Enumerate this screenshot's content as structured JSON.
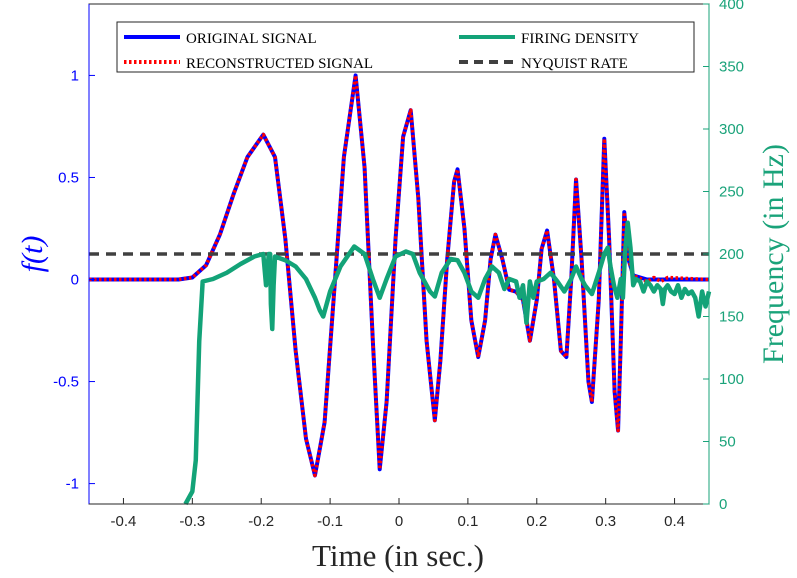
{
  "chart_data": {
    "type": "line",
    "title": "",
    "xlabel": "Time (in sec.)",
    "ylabel_left": "f(t)",
    "ylabel_right": "Frequency (in Hz)",
    "xlim": [
      -0.45,
      0.45
    ],
    "ylim_left": [
      -1.1,
      1.35
    ],
    "ylim_right": [
      0,
      400
    ],
    "xticks": [
      -0.4,
      -0.3,
      -0.2,
      -0.1,
      0,
      0.1,
      0.2,
      0.3,
      0.4
    ],
    "xtick_labels": [
      "-0.4",
      "-0.3",
      "-0.2",
      "-0.1",
      "0",
      "0.1",
      "0.2",
      "0.3",
      "0.4"
    ],
    "yticks_left": [
      -1,
      -0.5,
      0,
      0.5,
      1
    ],
    "ytick_labels_left": [
      "-1",
      "-0.5",
      "0",
      "0.5",
      "1"
    ],
    "yticks_right": [
      0,
      50,
      100,
      150,
      200,
      250,
      300,
      350,
      400
    ],
    "ytick_labels_right": [
      "0",
      "50",
      "100",
      "150",
      "200",
      "250",
      "300",
      "350",
      "400"
    ],
    "grid": false,
    "legend_placement": "top",
    "colors": {
      "left_axis": "#0000ff",
      "right_axis": "#1aa37a",
      "original": "#0000ff",
      "reconstructed": "#ff0000",
      "firing": "#13a378",
      "nyquist": "#404040"
    },
    "series": [
      {
        "name": "ORIGINAL SIGNAL",
        "axis": "left",
        "style": "solid",
        "points": [
          [
            -0.45,
            0
          ],
          [
            -0.32,
            0
          ],
          [
            -0.3,
            0.01
          ],
          [
            -0.28,
            0.07
          ],
          [
            -0.26,
            0.22
          ],
          [
            -0.24,
            0.42
          ],
          [
            -0.22,
            0.6
          ],
          [
            -0.197,
            0.71
          ],
          [
            -0.18,
            0.6
          ],
          [
            -0.165,
            0.2
          ],
          [
            -0.15,
            -0.35
          ],
          [
            -0.135,
            -0.78
          ],
          [
            -0.122,
            -0.96
          ],
          [
            -0.108,
            -0.7
          ],
          [
            -0.095,
            -0.1
          ],
          [
            -0.08,
            0.6
          ],
          [
            -0.063,
            1.0
          ],
          [
            -0.05,
            0.55
          ],
          [
            -0.038,
            -0.3
          ],
          [
            -0.028,
            -0.93
          ],
          [
            -0.018,
            -0.6
          ],
          [
            -0.005,
            0.2
          ],
          [
            0.006,
            0.7
          ],
          [
            0.017,
            0.83
          ],
          [
            0.028,
            0.4
          ],
          [
            0.04,
            -0.3
          ],
          [
            0.052,
            -0.69
          ],
          [
            0.06,
            -0.4
          ],
          [
            0.07,
            0.1
          ],
          [
            0.08,
            0.48
          ],
          [
            0.085,
            0.54
          ],
          [
            0.095,
            0.25
          ],
          [
            0.105,
            -0.2
          ],
          [
            0.115,
            -0.38
          ],
          [
            0.125,
            -0.2
          ],
          [
            0.133,
            0.1
          ],
          [
            0.14,
            0.22
          ],
          [
            0.15,
            0.1
          ],
          [
            0.16,
            -0.05
          ],
          [
            0.17,
            -0.06
          ],
          [
            0.18,
            -0.1
          ],
          [
            0.19,
            -0.3
          ],
          [
            0.2,
            -0.1
          ],
          [
            0.207,
            0.15
          ],
          [
            0.215,
            0.24
          ],
          [
            0.225,
            0.0
          ],
          [
            0.235,
            -0.35
          ],
          [
            0.243,
            -0.38
          ],
          [
            0.25,
            0.0
          ],
          [
            0.257,
            0.49
          ],
          [
            0.265,
            0.1
          ],
          [
            0.275,
            -0.5
          ],
          [
            0.28,
            -0.6
          ],
          [
            0.29,
            -0.1
          ],
          [
            0.298,
            0.69
          ],
          [
            0.305,
            0.2
          ],
          [
            0.313,
            -0.55
          ],
          [
            0.318,
            -0.74
          ],
          [
            0.322,
            -0.3
          ],
          [
            0.327,
            0.33
          ],
          [
            0.333,
            0.1
          ],
          [
            0.34,
            0.02
          ],
          [
            0.36,
            0.0
          ],
          [
            0.45,
            0.0
          ]
        ]
      },
      {
        "name": "RECONSTRUCTED SIGNAL",
        "axis": "left",
        "style": "dotted",
        "points": [
          [
            -0.45,
            0
          ],
          [
            -0.32,
            0
          ],
          [
            -0.3,
            0.01
          ],
          [
            -0.28,
            0.07
          ],
          [
            -0.26,
            0.22
          ],
          [
            -0.24,
            0.42
          ],
          [
            -0.22,
            0.6
          ],
          [
            -0.197,
            0.71
          ],
          [
            -0.18,
            0.6
          ],
          [
            -0.165,
            0.2
          ],
          [
            -0.15,
            -0.35
          ],
          [
            -0.135,
            -0.78
          ],
          [
            -0.122,
            -0.96
          ],
          [
            -0.108,
            -0.7
          ],
          [
            -0.095,
            -0.1
          ],
          [
            -0.08,
            0.6
          ],
          [
            -0.063,
            1.0
          ],
          [
            -0.05,
            0.55
          ],
          [
            -0.038,
            -0.3
          ],
          [
            -0.028,
            -0.93
          ],
          [
            -0.018,
            -0.6
          ],
          [
            -0.005,
            0.2
          ],
          [
            0.006,
            0.7
          ],
          [
            0.017,
            0.83
          ],
          [
            0.028,
            0.4
          ],
          [
            0.04,
            -0.3
          ],
          [
            0.052,
            -0.69
          ],
          [
            0.06,
            -0.4
          ],
          [
            0.07,
            0.1
          ],
          [
            0.08,
            0.48
          ],
          [
            0.085,
            0.54
          ],
          [
            0.095,
            0.25
          ],
          [
            0.105,
            -0.2
          ],
          [
            0.115,
            -0.38
          ],
          [
            0.125,
            -0.2
          ],
          [
            0.133,
            0.1
          ],
          [
            0.14,
            0.22
          ],
          [
            0.15,
            0.1
          ],
          [
            0.16,
            -0.05
          ],
          [
            0.17,
            -0.06
          ],
          [
            0.18,
            -0.1
          ],
          [
            0.19,
            -0.3
          ],
          [
            0.2,
            -0.1
          ],
          [
            0.207,
            0.15
          ],
          [
            0.215,
            0.24
          ],
          [
            0.225,
            0.0
          ],
          [
            0.235,
            -0.35
          ],
          [
            0.243,
            -0.38
          ],
          [
            0.25,
            0.0
          ],
          [
            0.257,
            0.49
          ],
          [
            0.265,
            0.1
          ],
          [
            0.275,
            -0.5
          ],
          [
            0.28,
            -0.6
          ],
          [
            0.29,
            -0.1
          ],
          [
            0.298,
            0.69
          ],
          [
            0.305,
            0.2
          ],
          [
            0.313,
            -0.55
          ],
          [
            0.318,
            -0.74
          ],
          [
            0.322,
            -0.3
          ],
          [
            0.327,
            0.33
          ],
          [
            0.333,
            0.1
          ],
          [
            0.34,
            0.02
          ],
          [
            0.36,
            -0.01
          ],
          [
            0.37,
            0.01
          ],
          [
            0.38,
            -0.01
          ],
          [
            0.39,
            0.01
          ],
          [
            0.45,
            0.0
          ]
        ]
      },
      {
        "name": "FIRING DENSITY",
        "axis": "right",
        "style": "solid",
        "points": [
          [
            -0.31,
            0
          ],
          [
            -0.3,
            10
          ],
          [
            -0.295,
            35
          ],
          [
            -0.29,
            130
          ],
          [
            -0.285,
            178
          ],
          [
            -0.27,
            180
          ],
          [
            -0.25,
            185
          ],
          [
            -0.23,
            192
          ],
          [
            -0.21,
            198
          ],
          [
            -0.197,
            200
          ],
          [
            -0.193,
            175
          ],
          [
            -0.189,
            200
          ],
          [
            -0.187,
            200
          ],
          [
            -0.186,
            160
          ],
          [
            -0.184,
            140
          ],
          [
            -0.182,
            175
          ],
          [
            -0.18,
            198
          ],
          [
            -0.165,
            195
          ],
          [
            -0.15,
            190
          ],
          [
            -0.135,
            180
          ],
          [
            -0.122,
            165
          ],
          [
            -0.115,
            155
          ],
          [
            -0.11,
            150
          ],
          [
            -0.1,
            170
          ],
          [
            -0.085,
            190
          ],
          [
            -0.065,
            206
          ],
          [
            -0.05,
            200
          ],
          [
            -0.038,
            180
          ],
          [
            -0.028,
            165
          ],
          [
            -0.018,
            180
          ],
          [
            -0.005,
            198
          ],
          [
            0.01,
            202
          ],
          [
            0.02,
            200
          ],
          [
            0.03,
            185
          ],
          [
            0.045,
            170
          ],
          [
            0.052,
            166
          ],
          [
            0.062,
            185
          ],
          [
            0.075,
            196
          ],
          [
            0.085,
            195
          ],
          [
            0.095,
            185
          ],
          [
            0.105,
            170
          ],
          [
            0.115,
            165
          ],
          [
            0.125,
            180
          ],
          [
            0.135,
            190
          ],
          [
            0.145,
            185
          ],
          [
            0.153,
            172
          ],
          [
            0.16,
            180
          ],
          [
            0.17,
            178
          ],
          [
            0.175,
            165
          ],
          [
            0.18,
            175
          ],
          [
            0.185,
            145
          ],
          [
            0.19,
            178
          ],
          [
            0.195,
            165
          ],
          [
            0.2,
            178
          ],
          [
            0.21,
            180
          ],
          [
            0.22,
            185
          ],
          [
            0.23,
            178
          ],
          [
            0.24,
            170
          ],
          [
            0.25,
            180
          ],
          [
            0.257,
            190
          ],
          [
            0.265,
            180
          ],
          [
            0.27,
            175
          ],
          [
            0.28,
            168
          ],
          [
            0.29,
            185
          ],
          [
            0.298,
            200
          ],
          [
            0.303,
            205
          ],
          [
            0.307,
            190
          ],
          [
            0.312,
            175
          ],
          [
            0.317,
            165
          ],
          [
            0.322,
            180
          ],
          [
            0.325,
            165
          ],
          [
            0.328,
            200
          ],
          [
            0.332,
            225
          ],
          [
            0.336,
            205
          ],
          [
            0.34,
            175
          ],
          [
            0.344,
            180
          ],
          [
            0.35,
            178
          ],
          [
            0.355,
            170
          ],
          [
            0.36,
            178
          ],
          [
            0.365,
            175
          ],
          [
            0.37,
            170
          ],
          [
            0.375,
            175
          ],
          [
            0.38,
            172
          ],
          [
            0.383,
            160
          ],
          [
            0.386,
            172
          ],
          [
            0.39,
            175
          ],
          [
            0.395,
            170
          ],
          [
            0.4,
            168
          ],
          [
            0.405,
            175
          ],
          [
            0.41,
            165
          ],
          [
            0.415,
            172
          ],
          [
            0.42,
            168
          ],
          [
            0.425,
            170
          ],
          [
            0.43,
            165
          ],
          [
            0.435,
            150
          ],
          [
            0.44,
            170
          ],
          [
            0.445,
            158
          ],
          [
            0.45,
            170
          ]
        ]
      },
      {
        "name": "NYQUIST RATE",
        "axis": "right",
        "style": "dashed",
        "points": [
          [
            -0.45,
            200
          ],
          [
            0.45,
            200
          ]
        ]
      }
    ]
  }
}
